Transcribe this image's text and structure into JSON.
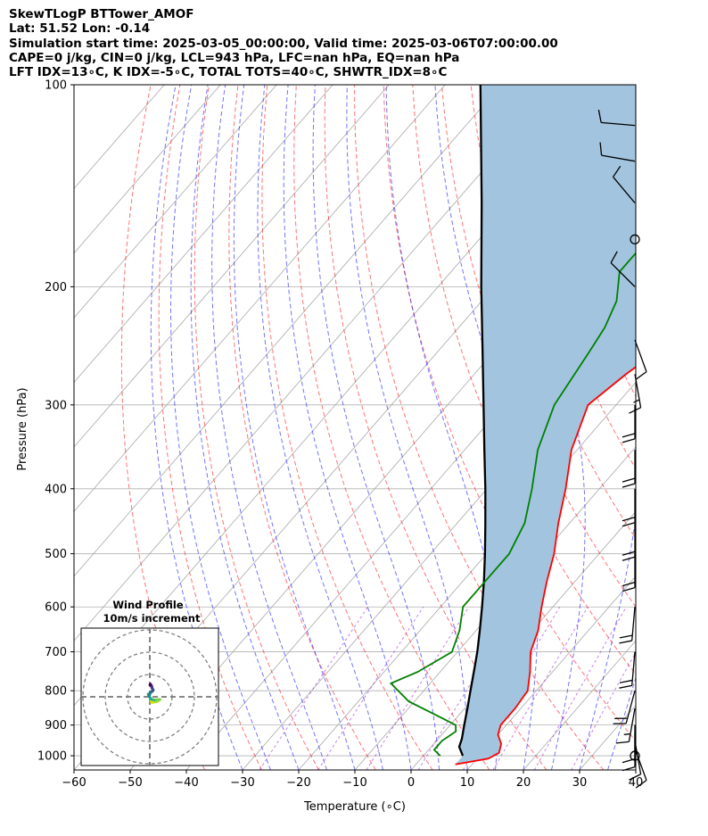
{
  "header": {
    "line1": "SkewTLogP BTTower_AMOF",
    "line2": "Lat: 51.52   Lon: -0.14",
    "line3": "Simulation start time: 2025-03-05_00:00:00, Valid time: 2025-03-06T07:00:00.00",
    "line4": "CAPE=0 j/kg, CIN=0 j/kg, LCL=943 hPa, LFC=nan hPa, EQ=nan hPa",
    "line5": "LFT IDX=13∘C, K IDX=-5∘C, TOTAL TOTS=40∘C, SHWTR_IDX=8∘C"
  },
  "chart_data": {
    "type": "line",
    "subtype": "skew-T log-p",
    "xlabel": "Temperature (∘C)",
    "ylabel": "Pressure (hPa)",
    "x_ticks": [
      -60,
      -50,
      -40,
      -30,
      -20,
      -10,
      0,
      10,
      20,
      30,
      40
    ],
    "y_ticks": [
      100,
      200,
      300,
      400,
      500,
      600,
      700,
      800,
      900,
      1000
    ],
    "xlim": [
      -60,
      40
    ],
    "ylim": [
      1050,
      100
    ],
    "y_scale": "log",
    "grid": true,
    "colors": {
      "temperature": "#ff0000",
      "dewpoint": "#008000",
      "parcel": "#000000",
      "cape_fill": "#a2c4df",
      "dry_adiabat": "#ff0000",
      "moist_adiabat": "#0000ff",
      "mixing_ratio": "#9400d3"
    },
    "series": [
      {
        "name": "temperature",
        "points": [
          [
            1030,
            7
          ],
          [
            1010,
            12
          ],
          [
            990,
            13
          ],
          [
            960,
            12
          ],
          [
            930,
            10
          ],
          [
            900,
            9
          ],
          [
            850,
            9
          ],
          [
            800,
            8.5
          ],
          [
            750,
            6
          ],
          [
            700,
            3
          ],
          [
            650,
            1
          ],
          [
            600,
            -2
          ],
          [
            550,
            -5
          ],
          [
            500,
            -8
          ],
          [
            450,
            -12
          ],
          [
            400,
            -16
          ],
          [
            350,
            -21
          ],
          [
            300,
            -25
          ],
          [
            270,
            -23
          ],
          [
            250,
            -21
          ],
          [
            230,
            -19
          ],
          [
            210,
            -16
          ],
          [
            190,
            -12
          ],
          [
            170,
            -10
          ],
          [
            150,
            -9
          ],
          [
            130,
            -8
          ],
          [
            115,
            -6
          ],
          [
            100,
            -5
          ]
        ]
      },
      {
        "name": "dewpoint",
        "points": [
          [
            1000,
            3
          ],
          [
            980,
            1
          ],
          [
            950,
            1
          ],
          [
            920,
            2
          ],
          [
            900,
            1
          ],
          [
            870,
            -4
          ],
          [
            830,
            -11
          ],
          [
            780,
            -17
          ],
          [
            750,
            -14
          ],
          [
            700,
            -11
          ],
          [
            650,
            -13
          ],
          [
            600,
            -16
          ],
          [
            550,
            -16
          ],
          [
            500,
            -16
          ],
          [
            450,
            -18
          ],
          [
            400,
            -22
          ],
          [
            350,
            -27
          ],
          [
            300,
            -31
          ],
          [
            250,
            -33
          ],
          [
            230,
            -34
          ],
          [
            210,
            -36
          ],
          [
            190,
            -40
          ],
          [
            170,
            -40
          ],
          [
            150,
            -40
          ],
          [
            120,
            -37
          ],
          [
            100,
            -33
          ]
        ]
      },
      {
        "name": "parcel",
        "points": [
          [
            1000,
            7
          ],
          [
            970,
            5
          ],
          [
            943,
            4.2
          ],
          [
            900,
            2.5
          ],
          [
            850,
            0.5
          ],
          [
            800,
            -1.7
          ],
          [
            750,
            -4
          ],
          [
            700,
            -6.5
          ],
          [
            650,
            -9.4
          ],
          [
            600,
            -12.6
          ],
          [
            550,
            -16.2
          ],
          [
            500,
            -20.3
          ],
          [
            450,
            -25
          ],
          [
            400,
            -30.3
          ],
          [
            350,
            -36.5
          ],
          [
            300,
            -43.6
          ],
          [
            250,
            -52
          ],
          [
            200,
            -62.3
          ],
          [
            150,
            -75.2
          ],
          [
            100,
            -93.7
          ]
        ]
      }
    ],
    "wind_barbs": [
      {
        "p": 1000,
        "calm": true
      },
      {
        "p": 975,
        "speed_kt": 10,
        "dir": 160
      },
      {
        "p": 950,
        "speed_kt": 10,
        "dir": 170
      },
      {
        "p": 925,
        "speed_kt": 10,
        "dir": 180
      },
      {
        "p": 900,
        "speed_kt": 10,
        "dir": 180
      },
      {
        "p": 850,
        "speed_kt": 15,
        "dir": 190
      },
      {
        "p": 800,
        "speed_kt": 20,
        "dir": 195
      },
      {
        "p": 700,
        "speed_kt": 20,
        "dir": 185
      },
      {
        "p": 600,
        "speed_kt": 20,
        "dir": 185
      },
      {
        "p": 500,
        "speed_kt": 20,
        "dir": 180
      },
      {
        "p": 450,
        "speed_kt": 20,
        "dir": 180
      },
      {
        "p": 400,
        "speed_kt": 20,
        "dir": 180
      },
      {
        "p": 350,
        "speed_kt": 20,
        "dir": 180
      },
      {
        "p": 300,
        "speed_kt": 20,
        "dir": 180
      },
      {
        "p": 270,
        "speed_kt": 15,
        "dir": 170
      },
      {
        "p": 240,
        "speed_kt": 10,
        "dir": 160
      },
      {
        "p": 200,
        "speed_kt": 10,
        "dir": 315
      },
      {
        "p": 170,
        "calm": true
      },
      {
        "p": 150,
        "speed_kt": 10,
        "dir": 320
      },
      {
        "p": 130,
        "speed_kt": 10,
        "dir": 280
      },
      {
        "p": 115,
        "speed_kt": 10,
        "dir": 275
      }
    ],
    "inset": {
      "title_line1": "Wind Profile",
      "title_line2": "10m/s increment",
      "type": "hodograph",
      "rings_ms": [
        10,
        20,
        30
      ],
      "points_uv": [
        [
          0.5,
          -2
        ],
        [
          1,
          -2.5
        ],
        [
          3,
          -2.2
        ],
        [
          4.5,
          -1.2
        ],
        [
          2,
          -1.5
        ],
        [
          0.5,
          -1
        ],
        [
          -0.5,
          0.5
        ],
        [
          -0.6,
          1.2
        ],
        [
          -0.3,
          0.5
        ],
        [
          0.3,
          2
        ],
        [
          1.2,
          2.6
        ],
        [
          1.5,
          3
        ],
        [
          1,
          4
        ],
        [
          0.8,
          4.8
        ],
        [
          0.3,
          5.6
        ],
        [
          0.1,
          5.4
        ]
      ]
    }
  }
}
